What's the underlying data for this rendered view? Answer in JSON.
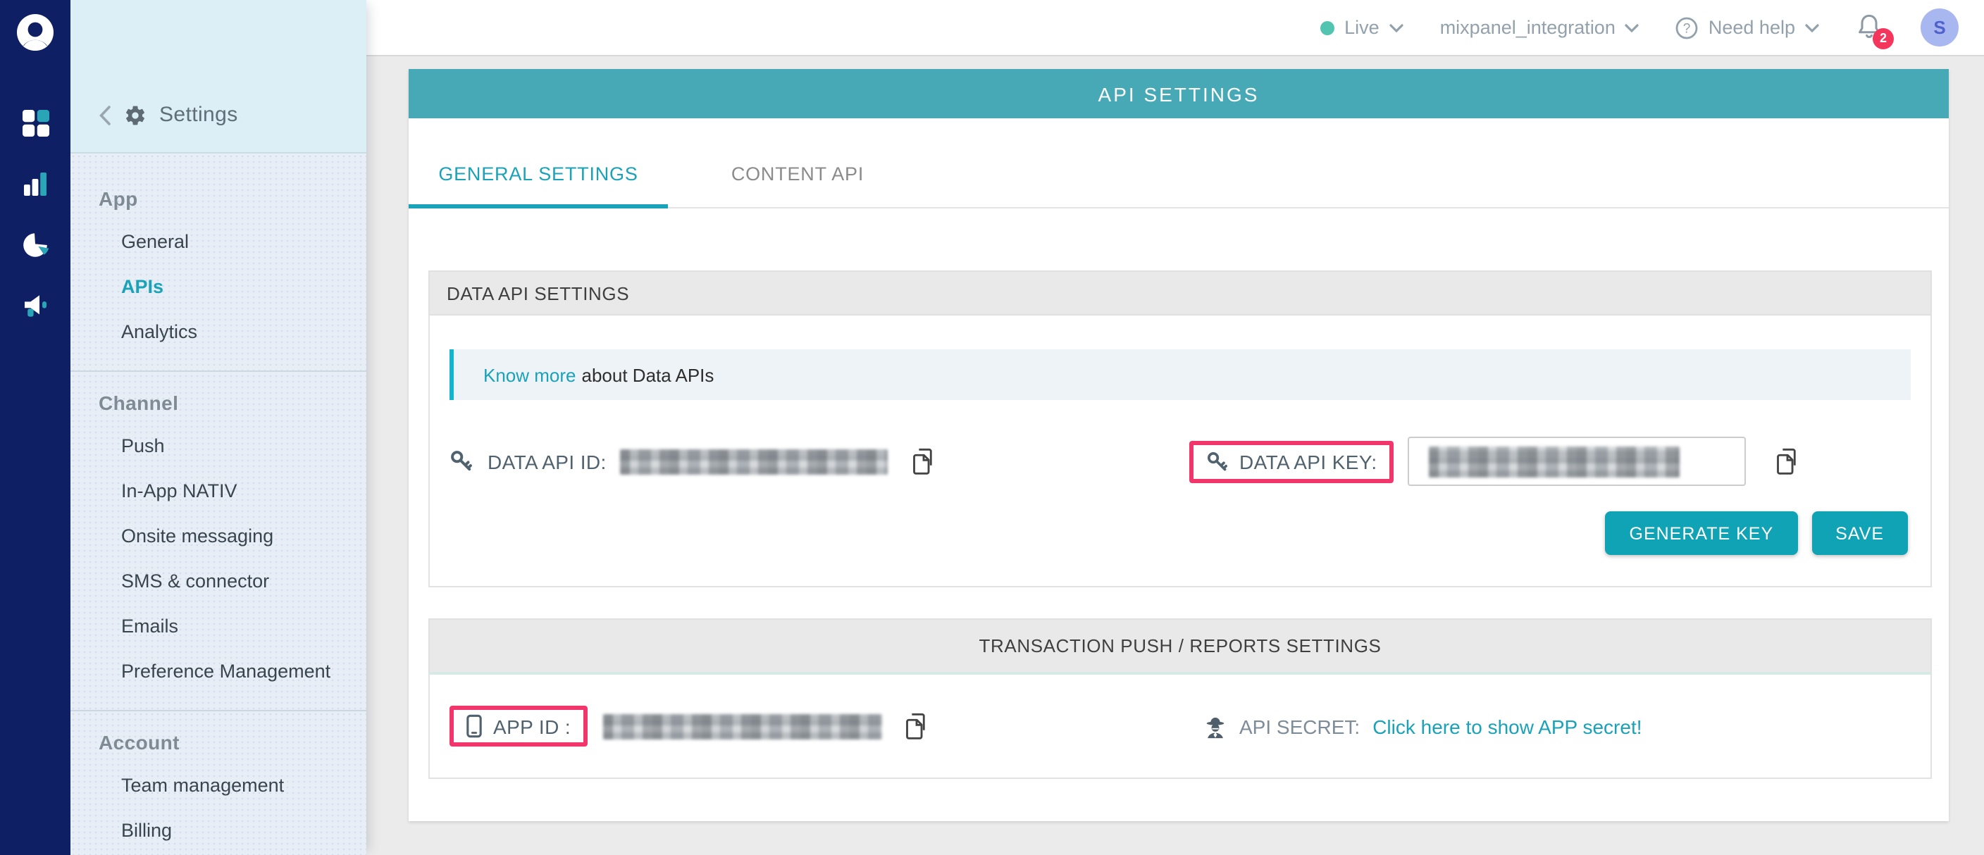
{
  "colors": {
    "rail_bg": "#0e2063",
    "sidebar_head_bg": "#dceef6",
    "sidebar_body_bg": "#e8eef6",
    "accent": "#1aa2b8",
    "banner": "#46a9b5",
    "button": "#0fa3b5",
    "pink": "#f2356b",
    "info_border": "#12b5c9",
    "badge": "#f5365c",
    "live_dot": "#52c5b1",
    "avatar_bg": "#a9b7f1",
    "avatar_text": "#4f61cc",
    "slate": "#51626f",
    "page_bg": "#ebebeb"
  },
  "icons": {
    "rail": [
      "user-logo-icon",
      "dashboard-grid-icon",
      "bar-chart-icon",
      "pie-chart-icon",
      "megaphone-icon"
    ],
    "other": [
      "back-chevron-icon",
      "gear-icon",
      "chevron-down-icon",
      "question-circle-icon",
      "bell-icon",
      "key-icon",
      "copy-icon",
      "phone-icon",
      "spy-icon"
    ]
  },
  "topbar": {
    "live_label": "Live",
    "project_name": "mixpanel_integration",
    "need_help_label": "Need help",
    "badge_count": "2",
    "avatar_initial": "S"
  },
  "sidebar": {
    "title": "Settings",
    "sections": [
      {
        "title": "App",
        "items": [
          {
            "label": "General",
            "active": false
          },
          {
            "label": "APIs",
            "active": true
          },
          {
            "label": "Analytics",
            "active": false
          }
        ]
      },
      {
        "title": "Channel",
        "items": [
          {
            "label": "Push",
            "active": false
          },
          {
            "label": "In-App NATIV",
            "active": false
          },
          {
            "label": "Onsite messaging",
            "active": false
          },
          {
            "label": "SMS & connector",
            "active": false
          },
          {
            "label": "Emails",
            "active": false
          },
          {
            "label": "Preference Management",
            "active": false
          }
        ]
      },
      {
        "title": "Account",
        "items": [
          {
            "label": "Team management",
            "active": false
          },
          {
            "label": "Billing",
            "active": false
          }
        ]
      }
    ]
  },
  "main": {
    "banner_title": "API SETTINGS",
    "tabs": {
      "general": "GENERAL SETTINGS",
      "content": "CONTENT API"
    },
    "data_api_section": {
      "header": "DATA API SETTINGS",
      "know_more_link": "Know more",
      "know_more_rest": "about Data APIs",
      "api_id_label": "DATA API ID:",
      "api_key_label": "DATA API KEY:",
      "generate_key_button": "GENERATE KEY",
      "save_button": "SAVE"
    },
    "transaction_section": {
      "header": "TRANSACTION PUSH / REPORTS SETTINGS",
      "app_id_label": "APP ID :",
      "api_secret_label": "API SECRET:",
      "api_secret_link": "Click here to show APP secret!"
    }
  }
}
